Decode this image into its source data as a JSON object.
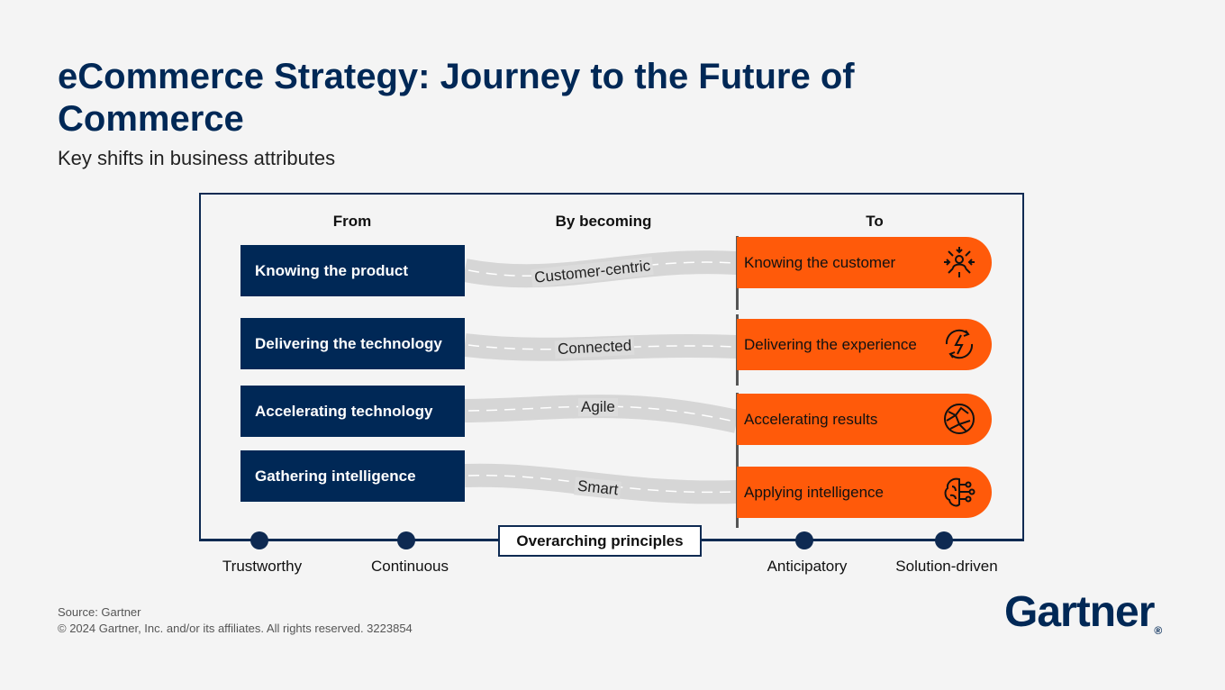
{
  "title": "eCommerce Strategy: Journey to the Future of Commerce",
  "subtitle": "Key shifts in business attributes",
  "columns": {
    "from": "From",
    "by": "By becoming",
    "to": "To"
  },
  "rows": [
    {
      "from": "Knowing the product",
      "by": "Customer-centric",
      "to": "Knowing the customer",
      "icon": "customer-focus-icon"
    },
    {
      "from": "Delivering the technology",
      "by": "Connected",
      "to": "Delivering the experience",
      "icon": "lightning-cycle-icon"
    },
    {
      "from": "Accelerating technology",
      "by": "Agile",
      "to": "Accelerating results",
      "icon": "globe-network-icon"
    },
    {
      "from": "Gathering intelligence",
      "by": "Smart",
      "to": "Applying intelligence",
      "icon": "brain-circuit-icon"
    }
  ],
  "principles": {
    "label": "Overarching principles",
    "items": [
      "Trustworthy",
      "Continuous",
      "Anticipatory",
      "Solution-driven"
    ]
  },
  "source": "Source: Gartner",
  "copyright": "© 2024 Gartner, Inc. and/or its affiliates. All rights reserved. 3223854",
  "logo": "Gartner",
  "colors": {
    "navy": "#002856",
    "orange": "#ff5a0a",
    "road": "#d6d6d6",
    "background": "#f4f4f4"
  }
}
